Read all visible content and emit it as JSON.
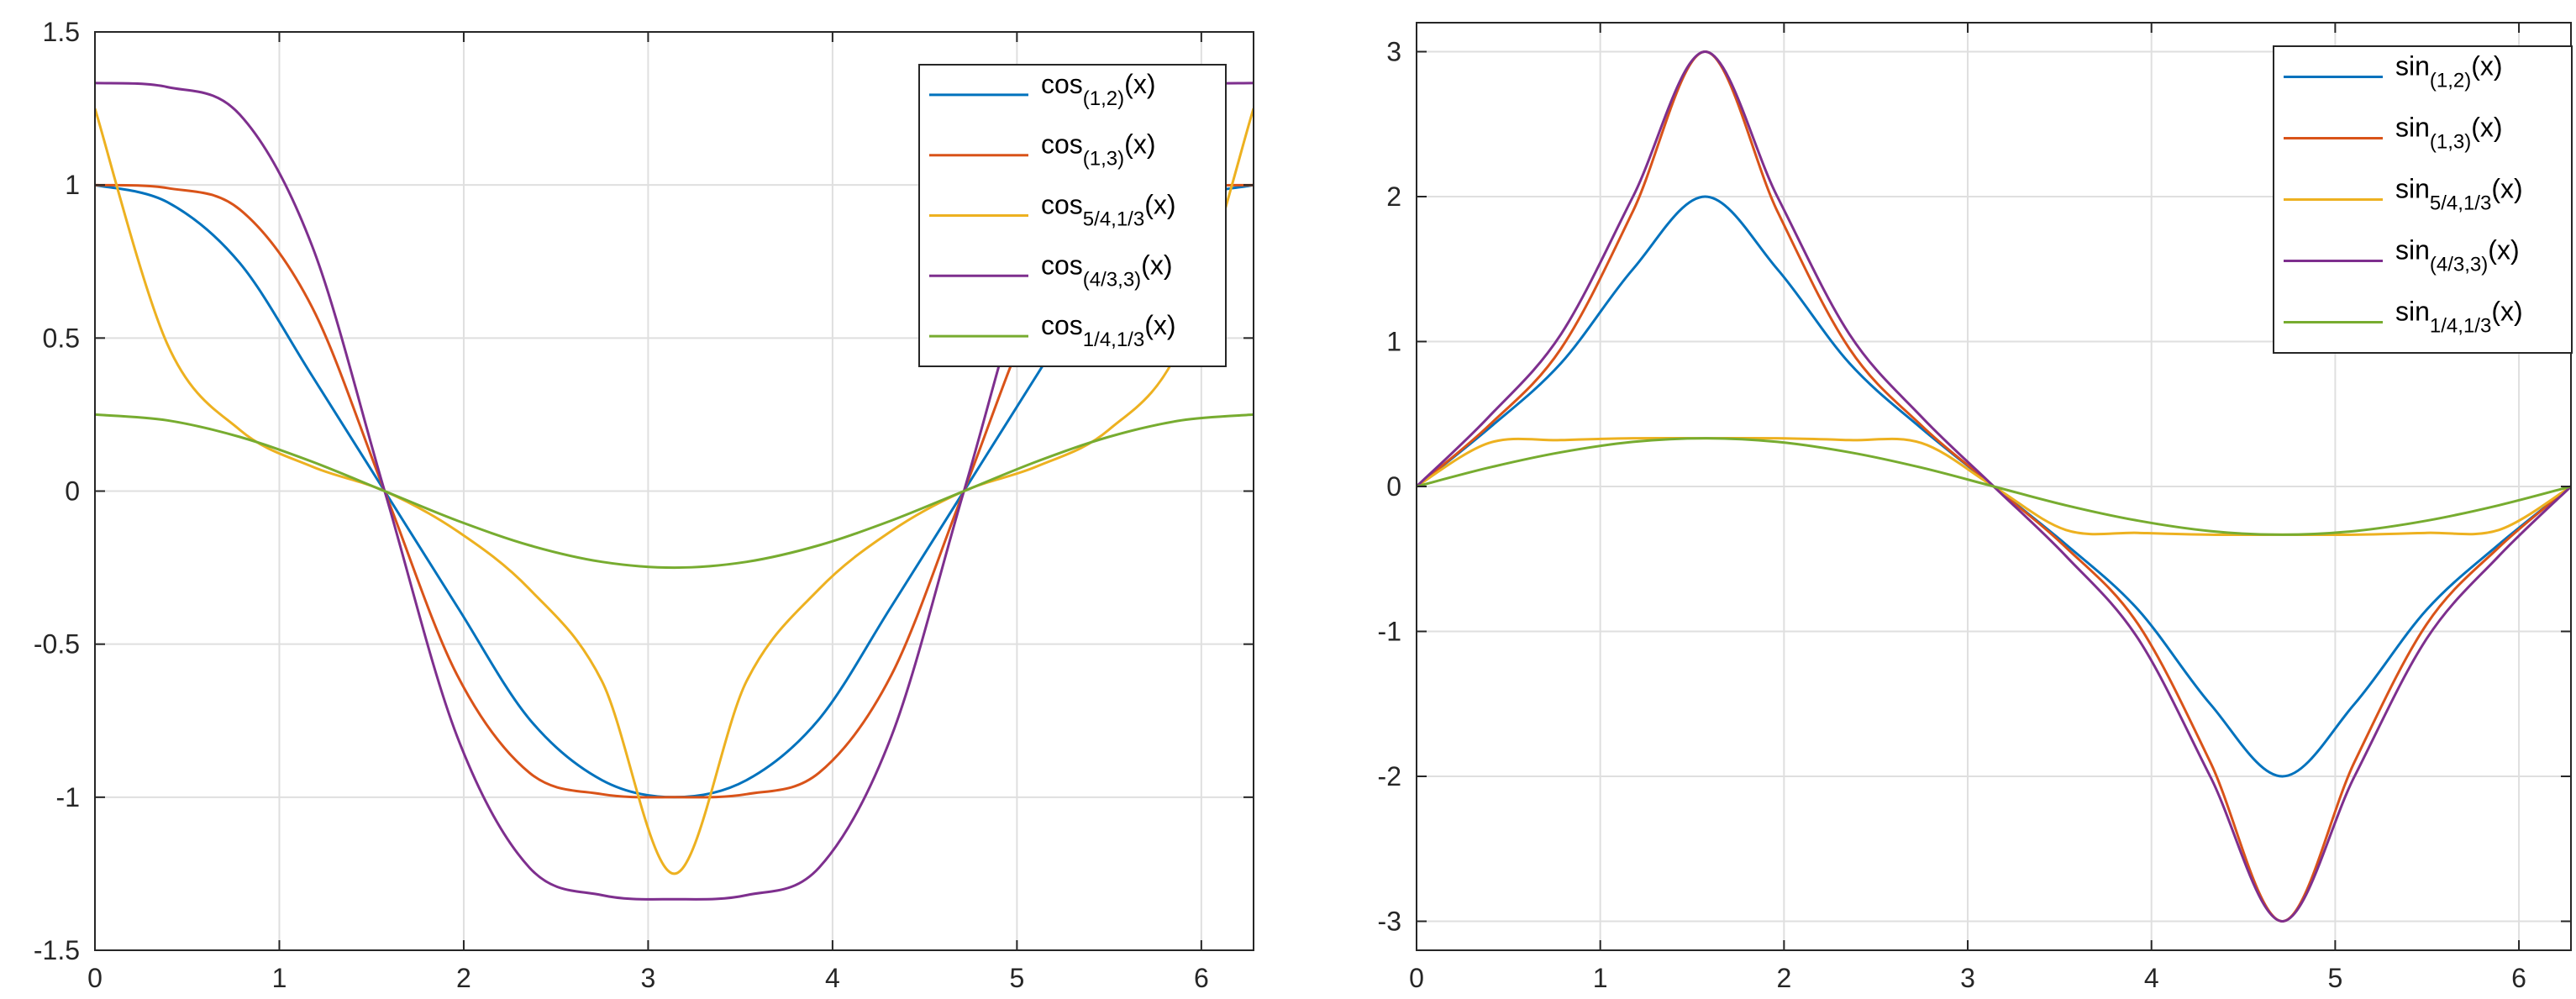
{
  "chart_data": [
    {
      "type": "line",
      "title": "",
      "xlabel": "",
      "ylabel": "",
      "xlim": [
        0,
        6.2832
      ],
      "ylim": [
        -1.5,
        1.5
      ],
      "xticks": [
        0,
        1,
        2,
        3,
        4,
        5,
        6
      ],
      "yticks": [
        -1.5,
        -1,
        -0.5,
        0,
        0.5,
        1,
        1.5
      ],
      "xtick_labels": [
        "0",
        "1",
        "2",
        "3",
        "4",
        "5",
        "6"
      ],
      "ytick_labels": [
        "-1.5",
        "-1",
        "-0.5",
        "0",
        "0.5",
        "1",
        "1.5"
      ],
      "grid": true,
      "legend_position": "top-right",
      "x": [
        0.0,
        0.3927,
        0.7854,
        1.1781,
        1.5708,
        1.9635,
        2.3562,
        2.7489,
        3.1416,
        3.5343,
        3.927,
        4.3197,
        4.7124,
        5.1051,
        5.4978,
        5.8905,
        6.2832
      ],
      "series": [
        {
          "name": "cos",
          "subscript": "(1,2)",
          "suffix": "(x)",
          "color": "#0072BD",
          "values": [
            1.0,
            0.944,
            0.745,
            0.376,
            0.0,
            -0.376,
            -0.745,
            -0.944,
            -1.0,
            -0.944,
            -0.745,
            -0.376,
            0.0,
            0.376,
            0.745,
            0.944,
            1.0
          ]
        },
        {
          "name": "cos",
          "subscript": "(1,3)",
          "suffix": "(x)",
          "color": "#D95319",
          "values": [
            1.0,
            0.99,
            0.92,
            0.6,
            0.0,
            -0.6,
            -0.92,
            -0.99,
            -1.0,
            -0.99,
            -0.92,
            -0.6,
            0.0,
            0.6,
            0.92,
            0.99,
            1.0
          ]
        },
        {
          "name": "cos",
          "subscript": "5/4,1/3",
          "suffix": "(x)",
          "color": "#EDB120",
          "values": [
            1.25,
            0.48,
            0.2,
            0.08,
            0.0,
            -0.13,
            -0.32,
            -0.62,
            -1.25,
            -0.62,
            -0.32,
            -0.13,
            0.0,
            0.08,
            0.2,
            0.48,
            1.25
          ]
        },
        {
          "name": "cos",
          "subscript": "(4/3,3)",
          "suffix": "(x)",
          "color": "#7E2F8E",
          "values": [
            1.333,
            1.32,
            1.23,
            0.8,
            0.0,
            -0.8,
            -1.23,
            -1.32,
            -1.333,
            -1.32,
            -1.23,
            -0.8,
            0.0,
            0.8,
            1.23,
            1.32,
            1.333
          ]
        },
        {
          "name": "cos",
          "subscript": "1/4,1/3",
          "suffix": "(x)",
          "color": "#77AC30",
          "values": [
            0.25,
            0.231,
            0.177,
            0.096,
            0.0,
            -0.096,
            -0.177,
            -0.231,
            -0.25,
            -0.231,
            -0.177,
            -0.096,
            0.0,
            0.096,
            0.177,
            0.231,
            0.25
          ]
        }
      ]
    },
    {
      "type": "line",
      "title": "",
      "xlabel": "",
      "ylabel": "",
      "xlim": [
        0,
        6.2832
      ],
      "ylim": [
        -3.2,
        3.2
      ],
      "xticks": [
        0,
        1,
        2,
        3,
        4,
        5,
        6
      ],
      "yticks": [
        -3,
        -2,
        -1,
        0,
        1,
        2,
        3
      ],
      "xtick_labels": [
        "0",
        "1",
        "2",
        "3",
        "4",
        "5",
        "6"
      ],
      "ytick_labels": [
        "-3",
        "-2",
        "-1",
        "0",
        "1",
        "2",
        "3"
      ],
      "grid": true,
      "legend_position": "top-right",
      "x": [
        0.0,
        0.3927,
        0.7854,
        1.1781,
        1.5708,
        1.9635,
        2.3562,
        2.7489,
        3.1416,
        3.5343,
        3.927,
        4.3197,
        4.7124,
        5.1051,
        5.4978,
        5.8905,
        6.2832
      ],
      "series": [
        {
          "name": "sin",
          "subscript": "(1,2)",
          "suffix": "(x)",
          "color": "#0072BD",
          "values": [
            0.0,
            0.4,
            0.85,
            1.5,
            2.0,
            1.5,
            0.85,
            0.4,
            0.0,
            -0.4,
            -0.85,
            -1.5,
            -2.0,
            -1.5,
            -0.85,
            -0.4,
            0.0
          ]
        },
        {
          "name": "sin",
          "subscript": "(1,3)",
          "suffix": "(x)",
          "color": "#D95319",
          "values": [
            0.0,
            0.42,
            0.95,
            1.9,
            3.0,
            1.9,
            0.95,
            0.42,
            0.0,
            -0.42,
            -0.95,
            -1.9,
            -3.0,
            -1.9,
            -0.95,
            -0.42,
            0.0
          ]
        },
        {
          "name": "sin",
          "subscript": "5/4,1/3",
          "suffix": "(x)",
          "color": "#EDB120",
          "values": [
            0.0,
            0.3,
            0.32,
            0.333,
            0.333,
            0.333,
            0.32,
            0.3,
            0.0,
            -0.3,
            -0.32,
            -0.333,
            -0.333,
            -0.333,
            -0.32,
            -0.3,
            0.0
          ]
        },
        {
          "name": "sin",
          "subscript": "(4/3,3)",
          "suffix": "(x)",
          "color": "#7E2F8E",
          "values": [
            0.0,
            0.48,
            1.05,
            2.0,
            3.0,
            2.0,
            1.05,
            0.48,
            0.0,
            -0.48,
            -1.05,
            -2.0,
            -3.0,
            -2.0,
            -1.05,
            -0.48,
            0.0
          ]
        },
        {
          "name": "sin",
          "subscript": "1/4,1/3",
          "suffix": "(x)",
          "color": "#77AC30",
          "values": [
            0.0,
            0.13,
            0.236,
            0.308,
            0.333,
            0.308,
            0.236,
            0.13,
            0.0,
            -0.13,
            -0.236,
            -0.308,
            -0.333,
            -0.308,
            -0.236,
            -0.13,
            0.0
          ]
        }
      ]
    }
  ]
}
